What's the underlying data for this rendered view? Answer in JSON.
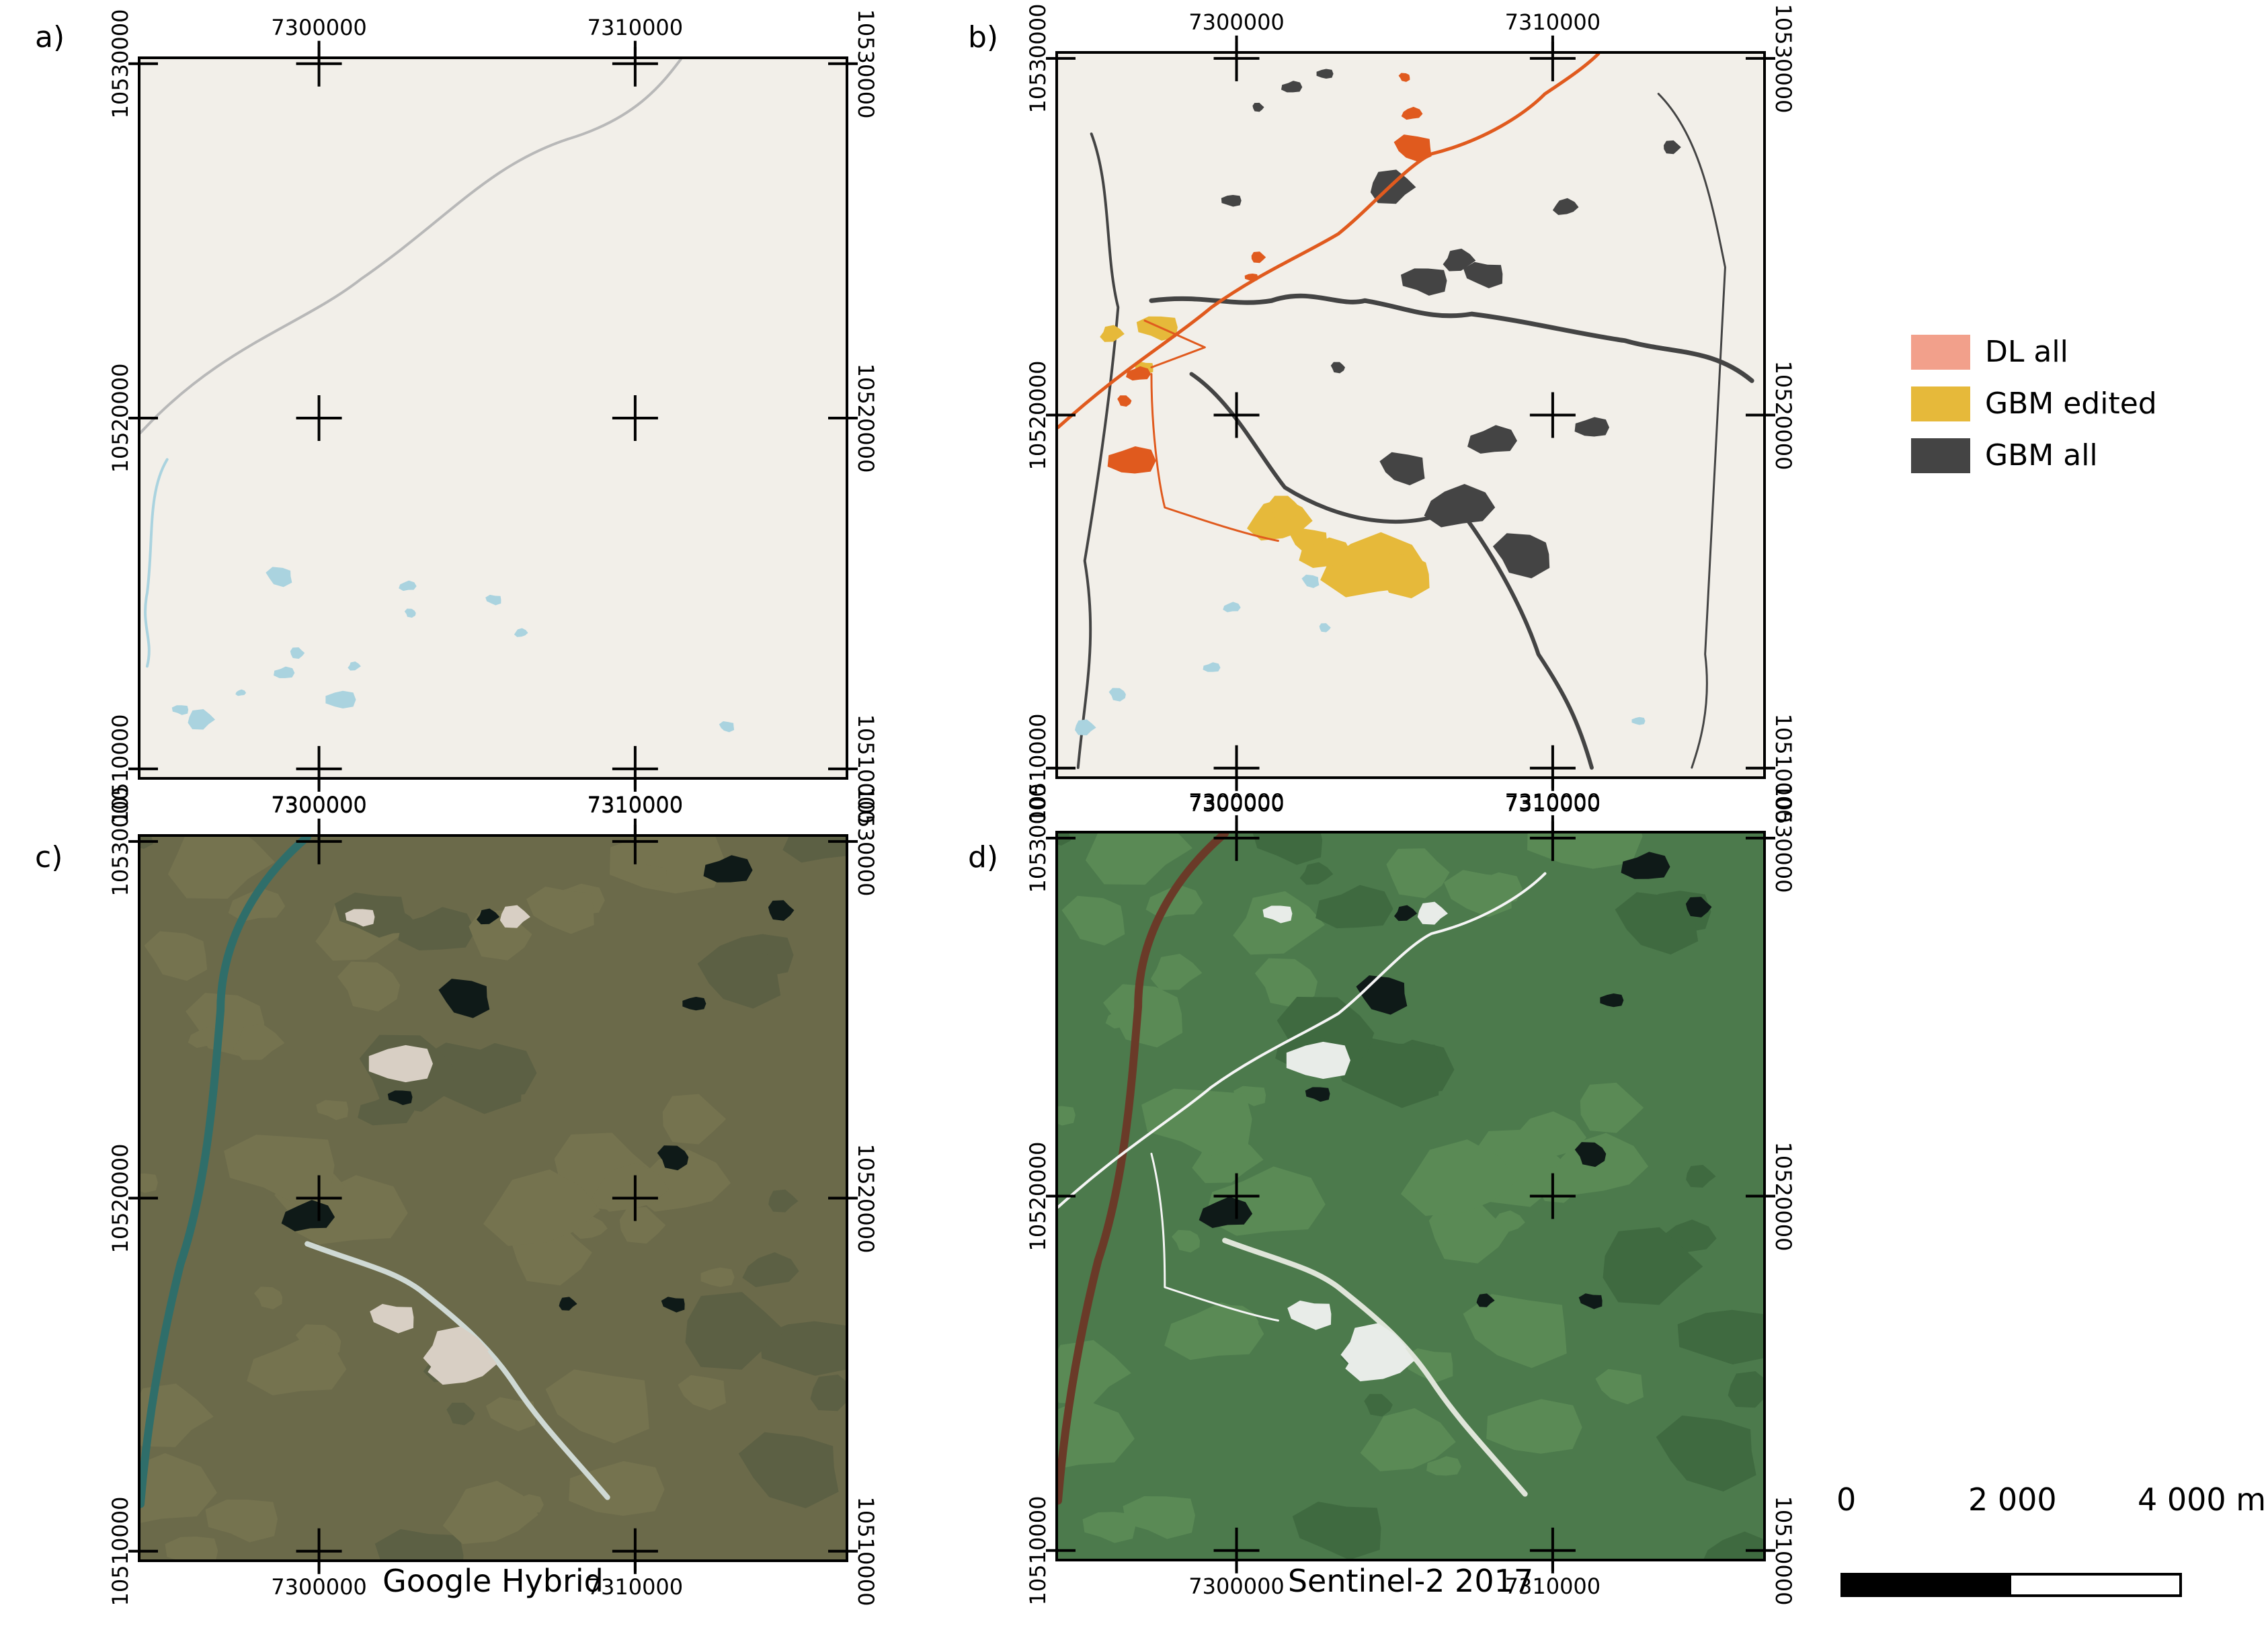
{
  "panels": [
    {
      "label": "a)",
      "type": "osm",
      "x_ticks": [
        "7300000",
        "7310000"
      ],
      "y_ticks": [
        "10530000",
        "10520000",
        "10510000"
      ],
      "caption": ""
    },
    {
      "label": "b)",
      "type": "classification",
      "x_ticks": [
        "7300000",
        "7310000"
      ],
      "y_ticks": [
        "10530000",
        "10520000",
        "10510000"
      ],
      "caption": ""
    },
    {
      "label": "c)",
      "type": "satellite",
      "x_ticks": [
        "7300000",
        "7310000"
      ],
      "y_ticks": [
        "10530000",
        "10520000",
        "10510000"
      ],
      "caption": "Google Hybrid"
    },
    {
      "label": "d)",
      "type": "satellite-s2",
      "x_ticks": [
        "7300000",
        "7310000"
      ],
      "y_ticks": [
        "10530000",
        "10520000",
        "10510000"
      ],
      "caption": "Sentinel-2 2017"
    }
  ],
  "legend": [
    {
      "label": "DL all",
      "color": "#f2a08b"
    },
    {
      "label": "GBM edited",
      "color": "#e6b93a"
    },
    {
      "label": "GBM all",
      "color": "#444444"
    }
  ],
  "scalebar": {
    "labels": [
      "0",
      "2 000",
      "4 000 m"
    ]
  },
  "colors": {
    "map_background": "#f2efe9",
    "water": "#aad3df",
    "road": "#e86a2a",
    "dl_dark": "#e05a1e",
    "gbm_edited": "#e6b93a",
    "gbm_all": "#444444",
    "tundra": "#6b6a4a",
    "s2_green": "#4a7a4a"
  }
}
